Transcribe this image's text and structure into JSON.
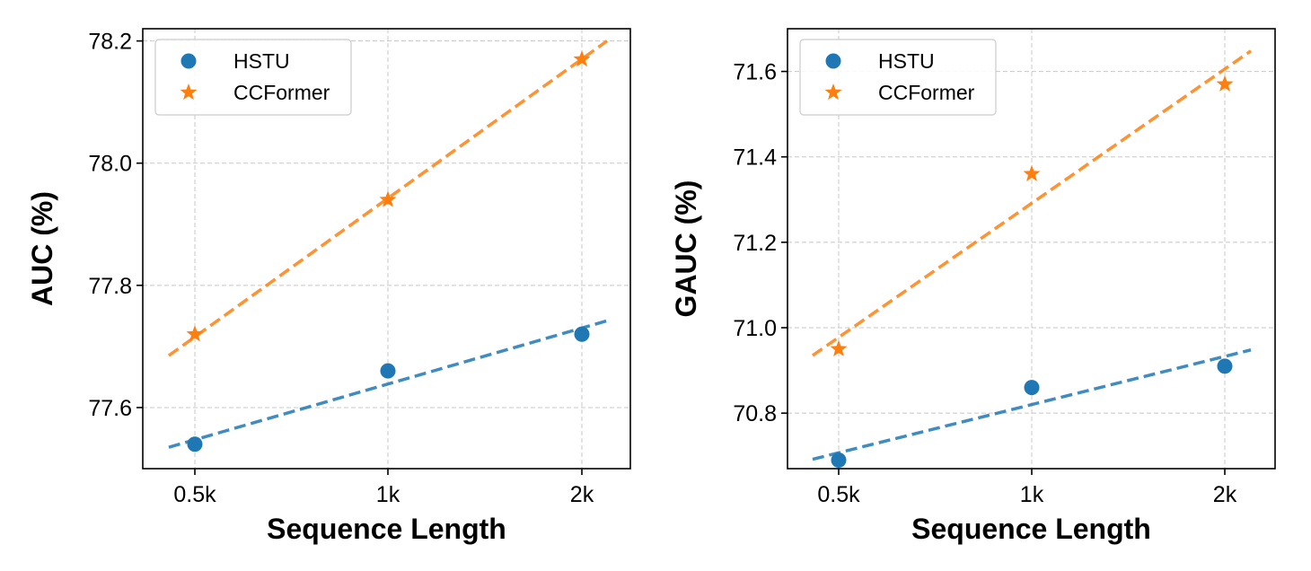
{
  "chart_data": [
    {
      "type": "scatter",
      "xlabel": "Sequence Length",
      "ylabel": "AUC (%)",
      "categories": [
        "0.5k",
        "1k",
        "2k"
      ],
      "ylim": [
        77.5,
        78.22
      ],
      "yticks": [
        "77.6",
        "77.8",
        "78.0",
        "78.2"
      ],
      "grid": true,
      "legend_position": "top-left",
      "series": [
        {
          "name": "HSTU",
          "marker": "circle",
          "color": "#1f77b4",
          "values": [
            77.54,
            77.66,
            77.72
          ],
          "trend": [
            77.535,
            77.742
          ]
        },
        {
          "name": "CCFormer",
          "marker": "star",
          "color": "#ff7f0e",
          "values": [
            77.72,
            77.94,
            78.17
          ],
          "trend": [
            77.685,
            78.2
          ]
        }
      ]
    },
    {
      "type": "scatter",
      "xlabel": "Sequence Length",
      "ylabel": "GAUC (%)",
      "categories": [
        "0.5k",
        "1k",
        "2k"
      ],
      "ylim": [
        70.67,
        71.7
      ],
      "yticks": [
        "70.8",
        "71.0",
        "71.2",
        "71.4",
        "71.6"
      ],
      "grid": true,
      "legend_position": "top-left",
      "series": [
        {
          "name": "HSTU",
          "marker": "circle",
          "color": "#1f77b4",
          "values": [
            70.69,
            70.86,
            70.91
          ],
          "trend": [
            70.692,
            70.948
          ]
        },
        {
          "name": "CCFormer",
          "marker": "star",
          "color": "#ff7f0e",
          "values": [
            70.95,
            71.36,
            71.57
          ],
          "trend": [
            70.935,
            71.648
          ]
        }
      ]
    }
  ]
}
